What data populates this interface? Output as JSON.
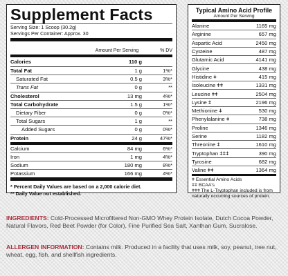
{
  "facts": {
    "title": "Supplement Facts",
    "serving_size": "Serving Size: 1 Scoop (30.2g)",
    "servings_per_container": "Servings Per Container: Approx. 30",
    "col_amount": "Amount Per Serving",
    "col_dv": "% DV",
    "rows": [
      {
        "name": "Calories",
        "amount": "110 g",
        "dv": ""
      },
      {
        "name": "Total Fat",
        "amount": "1 g",
        "dv": "1%*"
      },
      {
        "name": "Saturated Fat",
        "amount": "0.5 g",
        "dv": "3%*"
      },
      {
        "name": "Trans Fat",
        "amount": "0 g",
        "dv": "**"
      },
      {
        "name": "Cholesterol",
        "amount": "13 mg",
        "dv": "4%*"
      },
      {
        "name": "Total Carbohydrate",
        "amount": "1.5 g",
        "dv": "1%*"
      },
      {
        "name": "Dietary Fiber",
        "amount": "0 g",
        "dv": "0%*"
      },
      {
        "name": "Total Sugars",
        "amount": "1 g",
        "dv": "**"
      },
      {
        "name": "Added Sugars",
        "amount": "0 g",
        "dv": "0%*"
      },
      {
        "name": "Protein",
        "amount": "24 g",
        "dv": "47%*"
      },
      {
        "name": "Calcium",
        "amount": "84 mg",
        "dv": "6%*"
      },
      {
        "name": "Iron",
        "amount": "1 mg",
        "dv": "4%*"
      },
      {
        "name": "Sodium",
        "amount": "180 mg",
        "dv": "8%*"
      },
      {
        "name": "Potassium",
        "amount": "166 mg",
        "dv": "4%*"
      }
    ],
    "footnote1": "* Percent Daily Values are based on a 2,000 calorie diet.",
    "footnote2": "** Daily Value not established."
  },
  "amino": {
    "title": "Typical Amino Acid Profile",
    "subtitle": "Amount Per Serving",
    "rows": [
      {
        "name": "Alanine",
        "amount": "1165 mg"
      },
      {
        "name": "Arginine",
        "amount": "657 mg"
      },
      {
        "name": "Aspartic Acid",
        "amount": "2450 mg"
      },
      {
        "name": "Cysteine",
        "amount": "487 mg"
      },
      {
        "name": "Glutamic Acid",
        "amount": "4141 mg"
      },
      {
        "name": "Glycine",
        "amount": "438 mg"
      },
      {
        "name": "Histidine ǂ",
        "amount": "415 mg"
      },
      {
        "name": "Isoleucine ǂǂ",
        "amount": "1331 mg"
      },
      {
        "name": "Leucine ǂǂ",
        "amount": "2504 mg"
      },
      {
        "name": "Lysine ǂ",
        "amount": "2196 mg"
      },
      {
        "name": "Methionine ǂ",
        "amount": "530 mg"
      },
      {
        "name": "Phenylalanine ǂ",
        "amount": "738 mg"
      },
      {
        "name": "Proline",
        "amount": "1346 mg"
      },
      {
        "name": "Serine",
        "amount": "1182 mg"
      },
      {
        "name": "Threonine ǂ",
        "amount": "1610 mg"
      },
      {
        "name": "Tryptophan ǂǂǂ",
        "amount": "390 mg"
      },
      {
        "name": "Tyrosine",
        "amount": "682 mg"
      },
      {
        "name": "Valine ǂǂ",
        "amount": "1364 mg"
      }
    ],
    "note1": "ǂ Essential Amino Acids",
    "note2": "ǂǂ BCAA's",
    "note3": "ǂǂǂ The L-Tryptophan included is from naturally occurring sources of protein."
  },
  "ingredients": {
    "label": "INGREDIENTS:",
    "text": " Cold-Processed Microfiltered Non-GMO Whey Protein Isolate, Dutch Cocoa Powder, Natural Flavors, Red Beet Powder (for Color), Fine Purified Sea Salt, Xanthan Gum, Sucralose."
  },
  "allergen": {
    "label": "ALLERGEN INFORMATION:",
    "text": " Contains milk. Produced in a facility that uses milk, soy, peanut, tree nut, wheat, egg, fish, and shellfish ingredients."
  }
}
